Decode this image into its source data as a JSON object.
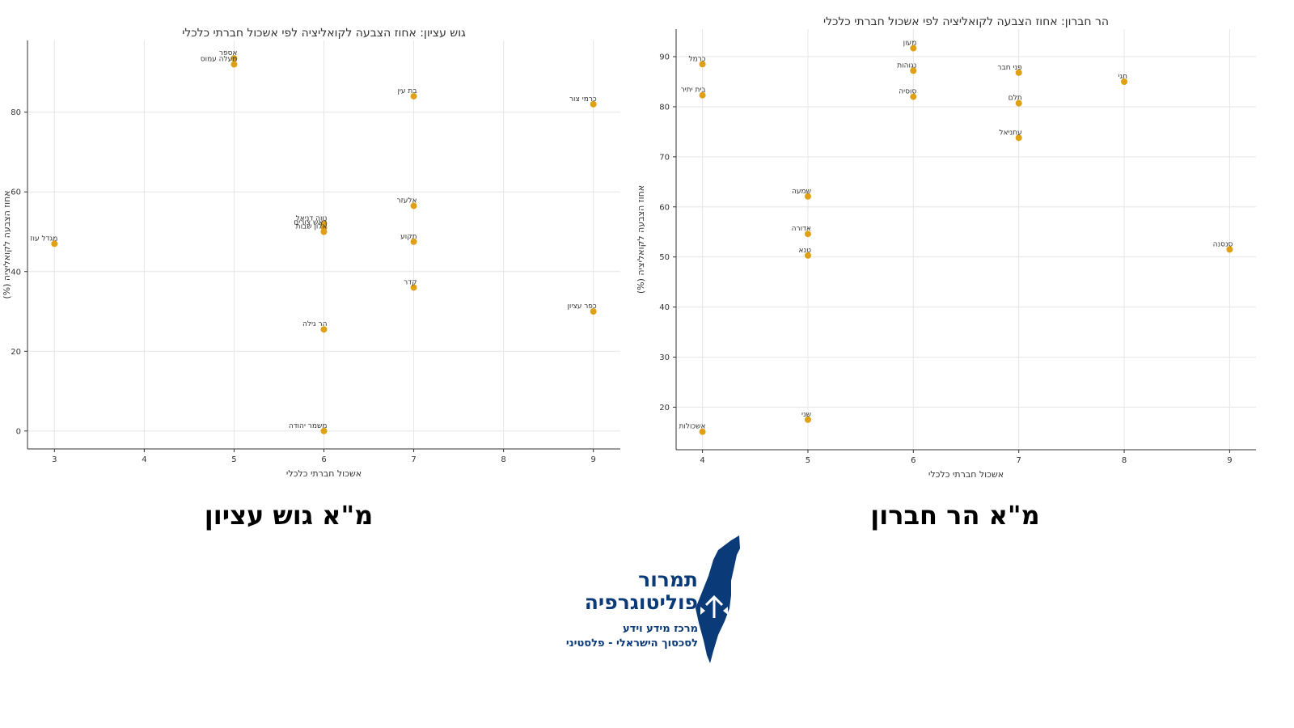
{
  "colors": {
    "point": "#E0A014",
    "grid": "#e6e6e6",
    "axis": "#333333",
    "brand": "#0B3A78"
  },
  "chart_data": [
    {
      "type": "scatter",
      "title": "גוש עציון: אחוז הצבעה לקואליציה לפי אשכול חברתי כלכלי",
      "xlabel": "אשכול חברתי כלכלי",
      "ylabel": "אחוז הצבעה לקואליציה (%)",
      "xlim": [
        2.7,
        9.3
      ],
      "ylim": [
        -4.5,
        98
      ],
      "xticks": [
        3,
        4,
        5,
        6,
        7,
        8,
        9
      ],
      "yticks": [
        0,
        20,
        40,
        60,
        80
      ],
      "grid": true,
      "points": [
        {
          "x": 5,
          "y": 93.5,
          "label": "אספר"
        },
        {
          "x": 5,
          "y": 92,
          "label": "מעלה עמוס"
        },
        {
          "x": 7,
          "y": 84,
          "label": "בת עין"
        },
        {
          "x": 9,
          "y": 82,
          "label": "כרמי צור"
        },
        {
          "x": 7,
          "y": 56.5,
          "label": "אלעזר"
        },
        {
          "x": 6,
          "y": 52,
          "label": "נווה דניאל"
        },
        {
          "x": 6,
          "y": 51,
          "label": "ראש צורים"
        },
        {
          "x": 6,
          "y": 50,
          "label": "אלון שבות"
        },
        {
          "x": 3,
          "y": 47,
          "label": "מגדל עוז"
        },
        {
          "x": 7,
          "y": 47.5,
          "label": "תקוע"
        },
        {
          "x": 7,
          "y": 36,
          "label": "קדר"
        },
        {
          "x": 9,
          "y": 30,
          "label": "כפר עציון"
        },
        {
          "x": 6,
          "y": 25.5,
          "label": "הר גילה"
        },
        {
          "x": 6,
          "y": 0,
          "label": "משמר יהודה"
        }
      ]
    },
    {
      "type": "scatter",
      "title": "הר חברון: אחוז הצבעה לקואליציה לפי אשכול חברתי כלכלי",
      "xlabel": "אשכול חברתי כלכלי",
      "ylabel": "אחוז הצבעה לקואליציה (%)",
      "xlim": [
        3.75,
        9.25
      ],
      "ylim": [
        11.5,
        95.5
      ],
      "xticks": [
        4,
        5,
        6,
        7,
        8,
        9
      ],
      "yticks": [
        20,
        30,
        40,
        50,
        60,
        70,
        80,
        90
      ],
      "grid": true,
      "points": [
        {
          "x": 6,
          "y": 91.7,
          "label": "מעון"
        },
        {
          "x": 4,
          "y": 88.5,
          "label": "כרמל"
        },
        {
          "x": 6,
          "y": 87.2,
          "label": "נגוהות"
        },
        {
          "x": 7,
          "y": 86.8,
          "label": "פני חבר"
        },
        {
          "x": 8,
          "y": 85,
          "label": "חגי"
        },
        {
          "x": 4,
          "y": 82.3,
          "label": "בית יתיר"
        },
        {
          "x": 6,
          "y": 82,
          "label": "סוסיה"
        },
        {
          "x": 7,
          "y": 80.7,
          "label": "תלם"
        },
        {
          "x": 7,
          "y": 73.8,
          "label": "עתניאל"
        },
        {
          "x": 5,
          "y": 62.1,
          "label": "שמעה"
        },
        {
          "x": 5,
          "y": 54.6,
          "label": "אדורה"
        },
        {
          "x": 9,
          "y": 51.5,
          "label": "סנסנה"
        },
        {
          "x": 5,
          "y": 50.3,
          "label": "טנא"
        },
        {
          "x": 5,
          "y": 17.5,
          "label": "שני"
        },
        {
          "x": 4,
          "y": 15.1,
          "label": "אשכולות"
        }
      ]
    }
  ],
  "captions": {
    "left": "מ\"א גוש עציון",
    "right": "מ\"א הר חברון"
  },
  "logo": {
    "line1": "תמרור",
    "line2": "פוליטוגרפיה",
    "line3": "מרכז מידע וידע",
    "line4": "לסכסוך הישראלי - פלסטיני",
    "map_icon": "israel-map-with-road-sign-icon"
  }
}
